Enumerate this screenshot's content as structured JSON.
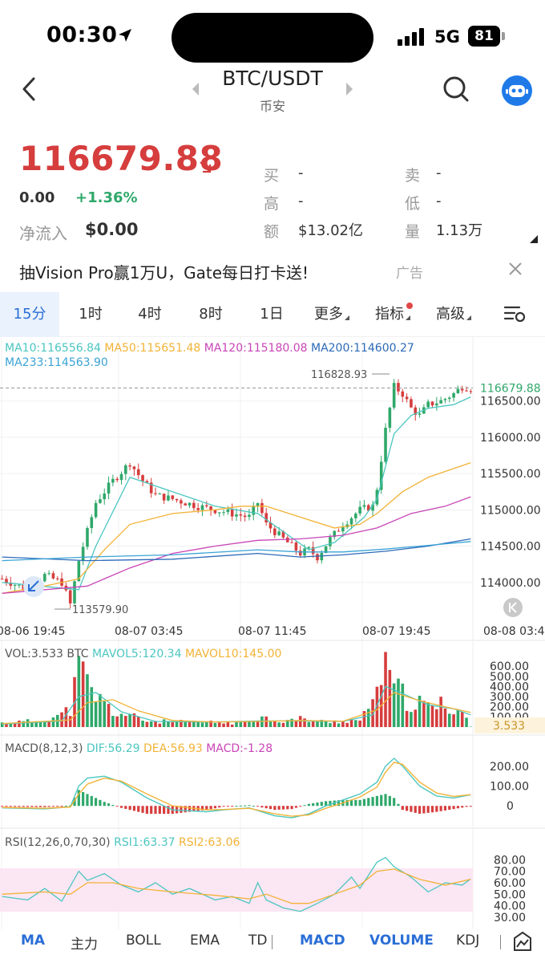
{
  "status_bar": {
    "time": "00:30",
    "network": "5G",
    "battery": "81"
  },
  "header": {
    "pair": "BTC/USDT",
    "exchange": "币安"
  },
  "ticker": {
    "last_price": "116679.88",
    "change_abs": "0.00",
    "change_pct": "+1.36%",
    "netflow_label": "净流入",
    "netflow_value": "$0.00",
    "buy_label": "买",
    "buy_value": "-",
    "sell_label": "卖",
    "sell_value": "-",
    "high_label": "高",
    "high_value": "-",
    "low_label": "低",
    "low_value": "-",
    "turnover_label": "额",
    "turnover_value": "$13.02亿",
    "volume_label": "量",
    "volume_value": "1.13万"
  },
  "ad": {
    "text": "抽Vision Pro赢1万U，Gate每日打卡送!",
    "tag": "广告"
  },
  "timeframes": {
    "t15m": "15分",
    "t1h": "1时",
    "t4h": "4时",
    "t8h": "8时",
    "t1d": "1日",
    "more": "更多",
    "indicators": "指标",
    "advanced": "高级"
  },
  "ma_legend": {
    "ma10": "MA10:116556.84",
    "ma50": "MA50:115651.48",
    "ma120": "MA120:115180.08",
    "ma200": "MA200:114600.27",
    "ma233": "MA233:114563.90"
  },
  "vol_legend": {
    "vol": "VOL:3.533 BTC",
    "mavol5": "MAVOL5:120.34",
    "mavol10": "MAVOL10:145.00"
  },
  "macd_legend": {
    "label": "MACD(8,12,3)",
    "dif": "DIF:56.29",
    "dea": "DEA:56.93",
    "macd": "MACD:-1.28"
  },
  "rsi_legend": {
    "label": "RSI(12,26,0,70,30)",
    "rsi1": "RSI1:63.37",
    "rsi2": "RSI2:63.06"
  },
  "colors": {
    "up": "#2fa86a",
    "down": "#d63d3d",
    "ma10": "#4cc6c0",
    "ma50": "#f2b236",
    "ma120": "#c945b7",
    "ma200": "#2c6ab8",
    "ma233": "#3aa3d6",
    "accent": "#2a6ed6"
  },
  "chart_data": [
    {
      "type": "candlestick",
      "title": "BTC/USDT 15分",
      "price_axis_ticks": [
        "116500.00",
        "116000.00",
        "115500.00",
        "115000.00",
        "114500.00",
        "114000.00"
      ],
      "price_ylim": [
        113400,
        117050
      ],
      "time_axis_ticks": [
        "08-06 19:45",
        "08-07 03:45",
        "08-07 11:45",
        "08-07 19:45",
        "08-08 03:4"
      ],
      "last_price_tag": "116679.88",
      "high_marker": "116828.93",
      "low_marker": "113579.90",
      "close_path": [
        [
          0,
          114050
        ],
        [
          6,
          113900
        ],
        [
          10,
          114100
        ],
        [
          14,
          114000
        ],
        [
          16,
          113700
        ],
        [
          18,
          114300
        ],
        [
          22,
          115100
        ],
        [
          26,
          115400
        ],
        [
          30,
          115650
        ],
        [
          33,
          115400
        ],
        [
          36,
          115200
        ],
        [
          40,
          115150
        ],
        [
          46,
          115050
        ],
        [
          50,
          115000
        ],
        [
          54,
          114950
        ],
        [
          58,
          114900
        ],
        [
          60,
          115100
        ],
        [
          62,
          114800
        ],
        [
          65,
          114650
        ],
        [
          68,
          114500
        ],
        [
          70,
          114400
        ],
        [
          72,
          114450
        ],
        [
          74,
          114350
        ],
        [
          77,
          114600
        ],
        [
          80,
          114800
        ],
        [
          84,
          115000
        ],
        [
          87,
          115050
        ],
        [
          88,
          115300
        ],
        [
          90,
          116100
        ],
        [
          92,
          116700
        ],
        [
          94,
          116600
        ],
        [
          96,
          116400
        ],
        [
          98,
          116300
        ],
        [
          100,
          116450
        ],
        [
          103,
          116500
        ],
        [
          106,
          116600
        ],
        [
          108,
          116700
        ],
        [
          110,
          116680
        ]
      ],
      "ma": {
        "MA10": [
          [
            0,
            114000
          ],
          [
            18,
            113900
          ],
          [
            22,
            114500
          ],
          [
            30,
            115450
          ],
          [
            40,
            115250
          ],
          [
            50,
            115050
          ],
          [
            60,
            114950
          ],
          [
            66,
            114700
          ],
          [
            72,
            114450
          ],
          [
            78,
            114550
          ],
          [
            85,
            114900
          ],
          [
            88,
            115150
          ],
          [
            92,
            116050
          ],
          [
            96,
            116300
          ],
          [
            100,
            116400
          ],
          [
            106,
            116450
          ],
          [
            110,
            116557
          ]
        ],
        "MA50": [
          [
            0,
            113850
          ],
          [
            10,
            113950
          ],
          [
            18,
            114050
          ],
          [
            24,
            114450
          ],
          [
            30,
            114800
          ],
          [
            40,
            114950
          ],
          [
            50,
            115000
          ],
          [
            56,
            115050
          ],
          [
            62,
            115050
          ],
          [
            70,
            114900
          ],
          [
            78,
            114750
          ],
          [
            84,
            114800
          ],
          [
            88,
            114950
          ],
          [
            94,
            115250
          ],
          [
            100,
            115450
          ],
          [
            110,
            115650
          ]
        ],
        "MA120": [
          [
            0,
            113850
          ],
          [
            20,
            113950
          ],
          [
            30,
            114200
          ],
          [
            40,
            114400
          ],
          [
            50,
            114500
          ],
          [
            60,
            114580
          ],
          [
            70,
            114600
          ],
          [
            80,
            114650
          ],
          [
            88,
            114750
          ],
          [
            96,
            114950
          ],
          [
            104,
            115050
          ],
          [
            110,
            115180
          ]
        ],
        "MA200": [
          [
            0,
            114350
          ],
          [
            20,
            114300
          ],
          [
            40,
            114320
          ],
          [
            60,
            114400
          ],
          [
            70,
            114350
          ],
          [
            80,
            114380
          ],
          [
            90,
            114430
          ],
          [
            100,
            114500
          ],
          [
            110,
            114600
          ]
        ],
        "MA233": [
          [
            0,
            114300
          ],
          [
            20,
            114350
          ],
          [
            40,
            114380
          ],
          [
            60,
            114450
          ],
          [
            70,
            114420
          ],
          [
            80,
            114420
          ],
          [
            90,
            114460
          ],
          [
            100,
            114510
          ],
          [
            110,
            114564
          ]
        ]
      }
    },
    {
      "type": "bar",
      "title": "VOL",
      "axis_ticks": [
        "600.00",
        "500.00",
        "400.00",
        "300.00",
        "200.00",
        "100.00"
      ],
      "ylim": [
        0,
        680
      ],
      "last_value_tag": "3.533",
      "volume_path": [
        [
          0,
          40
        ],
        [
          8,
          60
        ],
        [
          14,
          120
        ],
        [
          16,
          180
        ],
        [
          18,
          560
        ],
        [
          20,
          420
        ],
        [
          22,
          300
        ],
        [
          26,
          150
        ],
        [
          30,
          110
        ],
        [
          34,
          60
        ],
        [
          40,
          50
        ],
        [
          50,
          45
        ],
        [
          56,
          40
        ],
        [
          60,
          100
        ],
        [
          66,
          60
        ],
        [
          70,
          80
        ],
        [
          76,
          50
        ],
        [
          80,
          60
        ],
        [
          84,
          70
        ],
        [
          87,
          200
        ],
        [
          88,
          560
        ],
        [
          90,
          520
        ],
        [
          92,
          400
        ],
        [
          94,
          300
        ],
        [
          96,
          250
        ],
        [
          100,
          200
        ],
        [
          104,
          220
        ],
        [
          108,
          160
        ],
        [
          110,
          4
        ]
      ],
      "series": [
        {
          "name": "MAVOL5",
          "values": [
            [
              0,
              30
            ],
            [
              14,
              60
            ],
            [
              18,
              300
            ],
            [
              22,
              340
            ],
            [
              28,
              150
            ],
            [
              36,
              55
            ],
            [
              50,
              50
            ],
            [
              60,
              60
            ],
            [
              70,
              60
            ],
            [
              80,
              55
            ],
            [
              87,
              120
            ],
            [
              90,
              400
            ],
            [
              94,
              330
            ],
            [
              100,
              220
            ],
            [
              106,
              180
            ],
            [
              110,
              120
            ]
          ]
        },
        {
          "name": "MAVOL10",
          "values": [
            [
              0,
              35
            ],
            [
              16,
              70
            ],
            [
              20,
              240
            ],
            [
              26,
              270
            ],
            [
              32,
              160
            ],
            [
              40,
              65
            ],
            [
              50,
              50
            ],
            [
              60,
              55
            ],
            [
              70,
              65
            ],
            [
              80,
              58
            ],
            [
              88,
              170
            ],
            [
              92,
              340
            ],
            [
              98,
              260
            ],
            [
              104,
              200
            ],
            [
              110,
              145
            ]
          ]
        }
      ]
    },
    {
      "type": "macd",
      "axis_ticks": [
        "200.00",
        "100.00",
        "0"
      ],
      "ylim": [
        -80,
        260
      ],
      "series": [
        {
          "name": "DIF",
          "values": [
            [
              0,
              -10
            ],
            [
              10,
              -15
            ],
            [
              16,
              -5
            ],
            [
              18,
              100
            ],
            [
              20,
              140
            ],
            [
              24,
              150
            ],
            [
              28,
              120
            ],
            [
              34,
              40
            ],
            [
              40,
              -20
            ],
            [
              48,
              -30
            ],
            [
              52,
              -20
            ],
            [
              58,
              -10
            ],
            [
              64,
              -50
            ],
            [
              68,
              -60
            ],
            [
              72,
              -40
            ],
            [
              76,
              0
            ],
            [
              80,
              30
            ],
            [
              84,
              60
            ],
            [
              88,
              120
            ],
            [
              90,
              200
            ],
            [
              92,
              240
            ],
            [
              94,
              200
            ],
            [
              98,
              100
            ],
            [
              102,
              50
            ],
            [
              106,
              40
            ],
            [
              110,
              56.29
            ]
          ]
        },
        {
          "name": "DEA",
          "values": [
            [
              0,
              -8
            ],
            [
              10,
              -12
            ],
            [
              16,
              -6
            ],
            [
              18,
              60
            ],
            [
              20,
              110
            ],
            [
              24,
              140
            ],
            [
              28,
              125
            ],
            [
              34,
              60
            ],
            [
              40,
              0
            ],
            [
              48,
              -20
            ],
            [
              52,
              -18
            ],
            [
              58,
              -12
            ],
            [
              64,
              -40
            ],
            [
              68,
              -52
            ],
            [
              72,
              -45
            ],
            [
              76,
              -12
            ],
            [
              80,
              15
            ],
            [
              84,
              45
            ],
            [
              88,
              95
            ],
            [
              90,
              170
            ],
            [
              92,
              220
            ],
            [
              94,
              210
            ],
            [
              98,
              120
            ],
            [
              102,
              65
            ],
            [
              106,
              48
            ],
            [
              110,
              56.93
            ]
          ]
        }
      ]
    },
    {
      "type": "line",
      "title": "RSI",
      "axis_ticks": [
        "80.00",
        "70.00",
        "60.00",
        "50.00",
        "40.00",
        "30.00"
      ],
      "ylim": [
        25,
        88
      ],
      "series": [
        {
          "name": "RSI1",
          "values": [
            [
              0,
              48
            ],
            [
              6,
              45
            ],
            [
              10,
              55
            ],
            [
              14,
              44
            ],
            [
              18,
              70
            ],
            [
              20,
              62
            ],
            [
              24,
              68
            ],
            [
              28,
              58
            ],
            [
              32,
              52
            ],
            [
              36,
              60
            ],
            [
              40,
              50
            ],
            [
              44,
              55
            ],
            [
              50,
              45
            ],
            [
              54,
              48
            ],
            [
              58,
              42
            ],
            [
              60,
              60
            ],
            [
              62,
              45
            ],
            [
              66,
              38
            ],
            [
              70,
              35
            ],
            [
              74,
              42
            ],
            [
              78,
              50
            ],
            [
              82,
              65
            ],
            [
              84,
              55
            ],
            [
              88,
              78
            ],
            [
              90,
              82
            ],
            [
              92,
              74
            ],
            [
              96,
              65
            ],
            [
              100,
              52
            ],
            [
              104,
              60
            ],
            [
              108,
              58
            ],
            [
              110,
              63.37
            ]
          ]
        },
        {
          "name": "RSI2",
          "values": [
            [
              0,
              50
            ],
            [
              10,
              52
            ],
            [
              16,
              50
            ],
            [
              20,
              60
            ],
            [
              26,
              60
            ],
            [
              32,
              55
            ],
            [
              40,
              52
            ],
            [
              50,
              49
            ],
            [
              58,
              46
            ],
            [
              62,
              50
            ],
            [
              68,
              42
            ],
            [
              72,
              42
            ],
            [
              78,
              50
            ],
            [
              84,
              58
            ],
            [
              88,
              70
            ],
            [
              92,
              72
            ],
            [
              98,
              63
            ],
            [
              104,
              58
            ],
            [
              110,
              63.06
            ]
          ]
        }
      ]
    }
  ],
  "bottom_tabs": {
    "ma": "MA",
    "main": "主力",
    "boll": "BOLL",
    "ema": "EMA",
    "td": "TD",
    "macd": "MACD",
    "volume": "VOLUME",
    "kdj": "KDJ"
  }
}
